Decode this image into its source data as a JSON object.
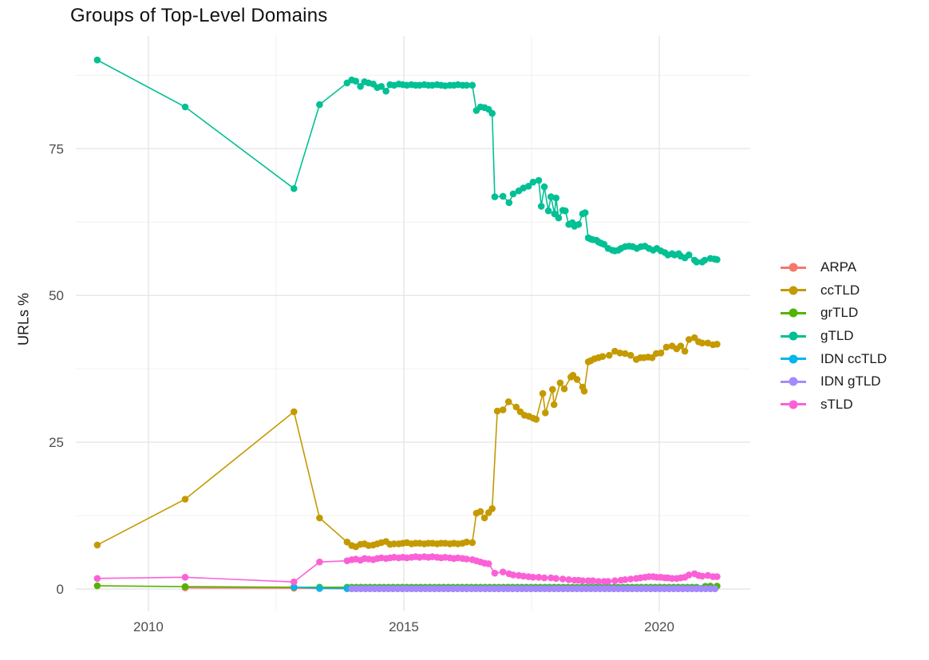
{
  "chart_data": {
    "type": "line",
    "title": "Groups of Top-Level Domains",
    "xlabel": "",
    "ylabel": "URLs %",
    "grid": "on",
    "legend_position": "right",
    "xlim": [
      2008.58,
      2021.78
    ],
    "ylim": [
      -3.8,
      94.2
    ],
    "x_ticks": [
      2010,
      2015,
      2020
    ],
    "x_tick_labels": [
      "2010",
      "2015",
      "2020"
    ],
    "x_minor_ticks": [
      2012.5,
      2017.5
    ],
    "y_ticks": [
      0,
      25,
      50,
      75
    ],
    "y_tick_labels": [
      "0",
      "25",
      "50",
      "75"
    ],
    "y_minor_ticks": [
      12.5,
      37.5,
      62.5,
      87.5
    ],
    "axis_text_color": "#4d4d4d",
    "grid_major_color": "#e4e4e4",
    "grid_minor_color": "#efefef",
    "series": [
      {
        "name": "ARPA",
        "color": "#F8766D",
        "points": [
          [
            2010.72,
            0.2
          ],
          [
            2012.85,
            0.15
          ],
          [
            2013.35,
            0.08
          ]
        ],
        "flat": {
          "from": 2013.89,
          "to": 2021.13,
          "step": 0.09,
          "value": 0.05
        }
      },
      {
        "name": "ccTLD",
        "color": "#C49A00",
        "points": [
          [
            2009.0,
            7.5
          ],
          [
            2010.72,
            15.3
          ],
          [
            2012.85,
            30.2
          ],
          [
            2013.35,
            12.1
          ],
          [
            2013.89,
            8.0
          ],
          [
            2013.98,
            7.4
          ],
          [
            2014.06,
            7.2
          ],
          [
            2014.15,
            7.6
          ],
          [
            2014.23,
            7.7
          ],
          [
            2014.31,
            7.4
          ],
          [
            2014.4,
            7.5
          ],
          [
            2014.48,
            7.7
          ],
          [
            2014.56,
            7.9
          ],
          [
            2014.65,
            8.1
          ],
          [
            2014.73,
            7.6
          ],
          [
            2014.81,
            7.7
          ],
          [
            2014.9,
            7.7
          ],
          [
            2014.98,
            7.8
          ],
          [
            2015.06,
            7.9
          ],
          [
            2015.15,
            7.7
          ],
          [
            2015.23,
            7.8
          ],
          [
            2015.31,
            7.8
          ],
          [
            2015.4,
            7.7
          ],
          [
            2015.48,
            7.8
          ],
          [
            2015.56,
            7.8
          ],
          [
            2015.65,
            7.7
          ],
          [
            2015.73,
            7.8
          ],
          [
            2015.81,
            7.8
          ],
          [
            2015.9,
            7.7
          ],
          [
            2015.98,
            7.8
          ],
          [
            2016.06,
            7.7
          ],
          [
            2016.15,
            7.8
          ],
          [
            2016.23,
            8.0
          ],
          [
            2016.34,
            7.9
          ],
          [
            2016.42,
            12.9
          ],
          [
            2016.5,
            13.2
          ],
          [
            2016.58,
            12.1
          ],
          [
            2016.66,
            13.0
          ],
          [
            2016.73,
            13.7
          ],
          [
            2016.83,
            30.3
          ],
          [
            2016.94,
            30.5
          ],
          [
            2017.05,
            31.9
          ],
          [
            2017.2,
            31.0
          ],
          [
            2017.28,
            30.2
          ],
          [
            2017.36,
            29.6
          ],
          [
            2017.45,
            29.4
          ],
          [
            2017.53,
            29.1
          ],
          [
            2017.59,
            28.9
          ],
          [
            2017.72,
            33.3
          ],
          [
            2017.77,
            30.0
          ],
          [
            2017.91,
            34.0
          ],
          [
            2017.94,
            31.4
          ],
          [
            2018.06,
            35.1
          ],
          [
            2018.14,
            34.1
          ],
          [
            2018.27,
            36.1
          ],
          [
            2018.31,
            36.4
          ],
          [
            2018.39,
            35.7
          ],
          [
            2018.5,
            34.4
          ],
          [
            2018.53,
            33.7
          ],
          [
            2018.61,
            38.7
          ],
          [
            2018.66,
            38.9
          ],
          [
            2018.73,
            39.2
          ],
          [
            2018.81,
            39.4
          ],
          [
            2018.89,
            39.6
          ],
          [
            2019.02,
            39.8
          ],
          [
            2019.13,
            40.5
          ],
          [
            2019.23,
            40.2
          ],
          [
            2019.33,
            40.1
          ],
          [
            2019.44,
            39.8
          ],
          [
            2019.55,
            39.1
          ],
          [
            2019.63,
            39.4
          ],
          [
            2019.7,
            39.4
          ],
          [
            2019.78,
            39.5
          ],
          [
            2019.86,
            39.4
          ],
          [
            2019.94,
            40.1
          ],
          [
            2020.03,
            40.2
          ],
          [
            2020.14,
            41.2
          ],
          [
            2020.25,
            41.4
          ],
          [
            2020.34,
            40.9
          ],
          [
            2020.42,
            41.4
          ],
          [
            2020.5,
            40.5
          ],
          [
            2020.58,
            42.5
          ],
          [
            2020.69,
            42.8
          ],
          [
            2020.77,
            42.1
          ],
          [
            2020.84,
            41.9
          ],
          [
            2020.95,
            41.9
          ],
          [
            2021.05,
            41.6
          ],
          [
            2021.13,
            41.7
          ]
        ]
      },
      {
        "name": "grTLD",
        "color": "#53B400",
        "points": [
          [
            2009.0,
            0.55
          ],
          [
            2010.72,
            0.4
          ],
          [
            2012.85,
            0.3
          ],
          [
            2013.35,
            0.3
          ],
          [
            2013.89,
            0.3
          ],
          [
            2020.9,
            0.45
          ],
          [
            2021.0,
            0.5
          ],
          [
            2021.13,
            0.5
          ]
        ],
        "flat": {
          "from": 2013.98,
          "to": 2020.81,
          "step": 0.09,
          "value": 0.3
        }
      },
      {
        "name": "gTLD",
        "color": "#00C094",
        "points": [
          [
            2009.0,
            90.1
          ],
          [
            2010.72,
            82.1
          ],
          [
            2012.85,
            68.2
          ],
          [
            2013.35,
            82.5
          ],
          [
            2013.89,
            86.2
          ],
          [
            2013.98,
            86.7
          ],
          [
            2014.06,
            86.5
          ],
          [
            2014.15,
            85.6
          ],
          [
            2014.23,
            86.4
          ],
          [
            2014.31,
            86.2
          ],
          [
            2014.4,
            86.0
          ],
          [
            2014.48,
            85.4
          ],
          [
            2014.56,
            85.6
          ],
          [
            2014.65,
            84.8
          ],
          [
            2014.73,
            85.9
          ],
          [
            2014.81,
            85.8
          ],
          [
            2014.9,
            86.0
          ],
          [
            2014.98,
            85.9
          ],
          [
            2015.06,
            85.8
          ],
          [
            2015.15,
            85.9
          ],
          [
            2015.23,
            85.8
          ],
          [
            2015.31,
            85.8
          ],
          [
            2015.4,
            85.9
          ],
          [
            2015.48,
            85.8
          ],
          [
            2015.56,
            85.8
          ],
          [
            2015.65,
            85.9
          ],
          [
            2015.73,
            85.8
          ],
          [
            2015.81,
            85.7
          ],
          [
            2015.9,
            85.8
          ],
          [
            2015.98,
            85.8
          ],
          [
            2016.06,
            85.9
          ],
          [
            2016.15,
            85.8
          ],
          [
            2016.23,
            85.8
          ],
          [
            2016.34,
            85.8
          ],
          [
            2016.42,
            81.5
          ],
          [
            2016.5,
            82.1
          ],
          [
            2016.58,
            82.0
          ],
          [
            2016.66,
            81.7
          ],
          [
            2016.73,
            81.0
          ],
          [
            2016.78,
            66.8
          ],
          [
            2016.94,
            66.9
          ],
          [
            2017.06,
            65.8
          ],
          [
            2017.14,
            67.3
          ],
          [
            2017.25,
            67.8
          ],
          [
            2017.34,
            68.3
          ],
          [
            2017.44,
            68.6
          ],
          [
            2017.53,
            69.3
          ],
          [
            2017.64,
            69.6
          ],
          [
            2017.69,
            65.2
          ],
          [
            2017.75,
            68.5
          ],
          [
            2017.83,
            64.4
          ],
          [
            2017.88,
            66.8
          ],
          [
            2017.95,
            63.9
          ],
          [
            2017.98,
            66.6
          ],
          [
            2018.03,
            63.2
          ],
          [
            2018.11,
            64.5
          ],
          [
            2018.16,
            64.4
          ],
          [
            2018.23,
            62.1
          ],
          [
            2018.3,
            62.4
          ],
          [
            2018.34,
            61.8
          ],
          [
            2018.42,
            62.1
          ],
          [
            2018.5,
            63.9
          ],
          [
            2018.55,
            64.1
          ],
          [
            2018.61,
            59.8
          ],
          [
            2018.66,
            59.6
          ],
          [
            2018.7,
            59.5
          ],
          [
            2018.77,
            59.4
          ],
          [
            2018.81,
            59.1
          ],
          [
            2018.86,
            58.9
          ],
          [
            2018.92,
            58.7
          ],
          [
            2019.0,
            58.0
          ],
          [
            2019.08,
            57.7
          ],
          [
            2019.13,
            57.6
          ],
          [
            2019.2,
            57.7
          ],
          [
            2019.25,
            58.0
          ],
          [
            2019.33,
            58.3
          ],
          [
            2019.41,
            58.4
          ],
          [
            2019.48,
            58.3
          ],
          [
            2019.56,
            58.0
          ],
          [
            2019.64,
            58.3
          ],
          [
            2019.72,
            58.4
          ],
          [
            2019.8,
            58.0
          ],
          [
            2019.88,
            57.7
          ],
          [
            2019.95,
            58.0
          ],
          [
            2020.03,
            57.6
          ],
          [
            2020.11,
            57.3
          ],
          [
            2020.17,
            56.9
          ],
          [
            2020.25,
            57.1
          ],
          [
            2020.3,
            56.9
          ],
          [
            2020.38,
            57.1
          ],
          [
            2020.42,
            56.7
          ],
          [
            2020.5,
            56.4
          ],
          [
            2020.58,
            56.9
          ],
          [
            2020.69,
            56.0
          ],
          [
            2020.73,
            55.7
          ],
          [
            2020.84,
            55.7
          ],
          [
            2020.89,
            56.0
          ],
          [
            2021.0,
            56.3
          ],
          [
            2021.08,
            56.2
          ],
          [
            2021.13,
            56.1
          ]
        ]
      },
      {
        "name": "IDN ccTLD",
        "color": "#00B6EB",
        "points": [
          [
            2012.85,
            0.35
          ],
          [
            2013.35,
            0.12
          ]
        ],
        "flat": {
          "from": 2013.89,
          "to": 2021.13,
          "step": 0.09,
          "value": 0.1
        }
      },
      {
        "name": "IDN gTLD",
        "color": "#A58AFF",
        "points": [],
        "flat": {
          "from": 2013.98,
          "to": 2021.13,
          "step": 0.09,
          "value": 0.04
        }
      },
      {
        "name": "sTLD",
        "color": "#FB61D7",
        "points": [
          [
            2009.0,
            1.8
          ],
          [
            2010.72,
            2.0
          ],
          [
            2012.85,
            1.2
          ],
          [
            2013.35,
            4.6
          ],
          [
            2013.89,
            4.8
          ],
          [
            2013.98,
            5.0
          ],
          [
            2014.06,
            5.1
          ],
          [
            2014.15,
            4.9
          ],
          [
            2014.23,
            5.2
          ],
          [
            2014.31,
            5.1
          ],
          [
            2014.4,
            5.0
          ],
          [
            2014.48,
            5.2
          ],
          [
            2014.56,
            5.3
          ],
          [
            2014.65,
            5.2
          ],
          [
            2014.73,
            5.3
          ],
          [
            2014.81,
            5.4
          ],
          [
            2014.9,
            5.3
          ],
          [
            2014.98,
            5.4
          ],
          [
            2015.06,
            5.3
          ],
          [
            2015.15,
            5.4
          ],
          [
            2015.23,
            5.5
          ],
          [
            2015.31,
            5.4
          ],
          [
            2015.4,
            5.5
          ],
          [
            2015.48,
            5.4
          ],
          [
            2015.56,
            5.5
          ],
          [
            2015.65,
            5.4
          ],
          [
            2015.73,
            5.3
          ],
          [
            2015.81,
            5.4
          ],
          [
            2015.9,
            5.3
          ],
          [
            2015.98,
            5.2
          ],
          [
            2016.06,
            5.3
          ],
          [
            2016.15,
            5.2
          ],
          [
            2016.23,
            5.1
          ],
          [
            2016.34,
            5.0
          ],
          [
            2016.42,
            4.8
          ],
          [
            2016.5,
            4.6
          ],
          [
            2016.58,
            4.4
          ],
          [
            2016.66,
            4.3
          ],
          [
            2016.78,
            2.7
          ],
          [
            2016.94,
            2.9
          ],
          [
            2017.06,
            2.6
          ],
          [
            2017.14,
            2.4
          ],
          [
            2017.25,
            2.3
          ],
          [
            2017.34,
            2.2
          ],
          [
            2017.44,
            2.1
          ],
          [
            2017.53,
            2.0
          ],
          [
            2017.64,
            2.0
          ],
          [
            2017.75,
            1.9
          ],
          [
            2017.88,
            1.9
          ],
          [
            2017.98,
            1.8
          ],
          [
            2018.11,
            1.7
          ],
          [
            2018.23,
            1.6
          ],
          [
            2018.34,
            1.5
          ],
          [
            2018.42,
            1.5
          ],
          [
            2018.5,
            1.4
          ],
          [
            2018.61,
            1.4
          ],
          [
            2018.7,
            1.4
          ],
          [
            2018.81,
            1.3
          ],
          [
            2018.92,
            1.3
          ],
          [
            2019.0,
            1.3
          ],
          [
            2019.13,
            1.4
          ],
          [
            2019.25,
            1.5
          ],
          [
            2019.33,
            1.6
          ],
          [
            2019.44,
            1.7
          ],
          [
            2019.55,
            1.8
          ],
          [
            2019.63,
            1.9
          ],
          [
            2019.72,
            2.0
          ],
          [
            2019.8,
            2.1
          ],
          [
            2019.88,
            2.1
          ],
          [
            2019.95,
            2.0
          ],
          [
            2020.03,
            2.0
          ],
          [
            2020.11,
            1.9
          ],
          [
            2020.17,
            1.9
          ],
          [
            2020.25,
            1.8
          ],
          [
            2020.34,
            1.8
          ],
          [
            2020.42,
            1.9
          ],
          [
            2020.5,
            2.0
          ],
          [
            2020.58,
            2.4
          ],
          [
            2020.69,
            2.6
          ],
          [
            2020.77,
            2.3
          ],
          [
            2020.84,
            2.2
          ],
          [
            2020.95,
            2.3
          ],
          [
            2021.05,
            2.1
          ],
          [
            2021.13,
            2.1
          ]
        ]
      }
    ]
  }
}
